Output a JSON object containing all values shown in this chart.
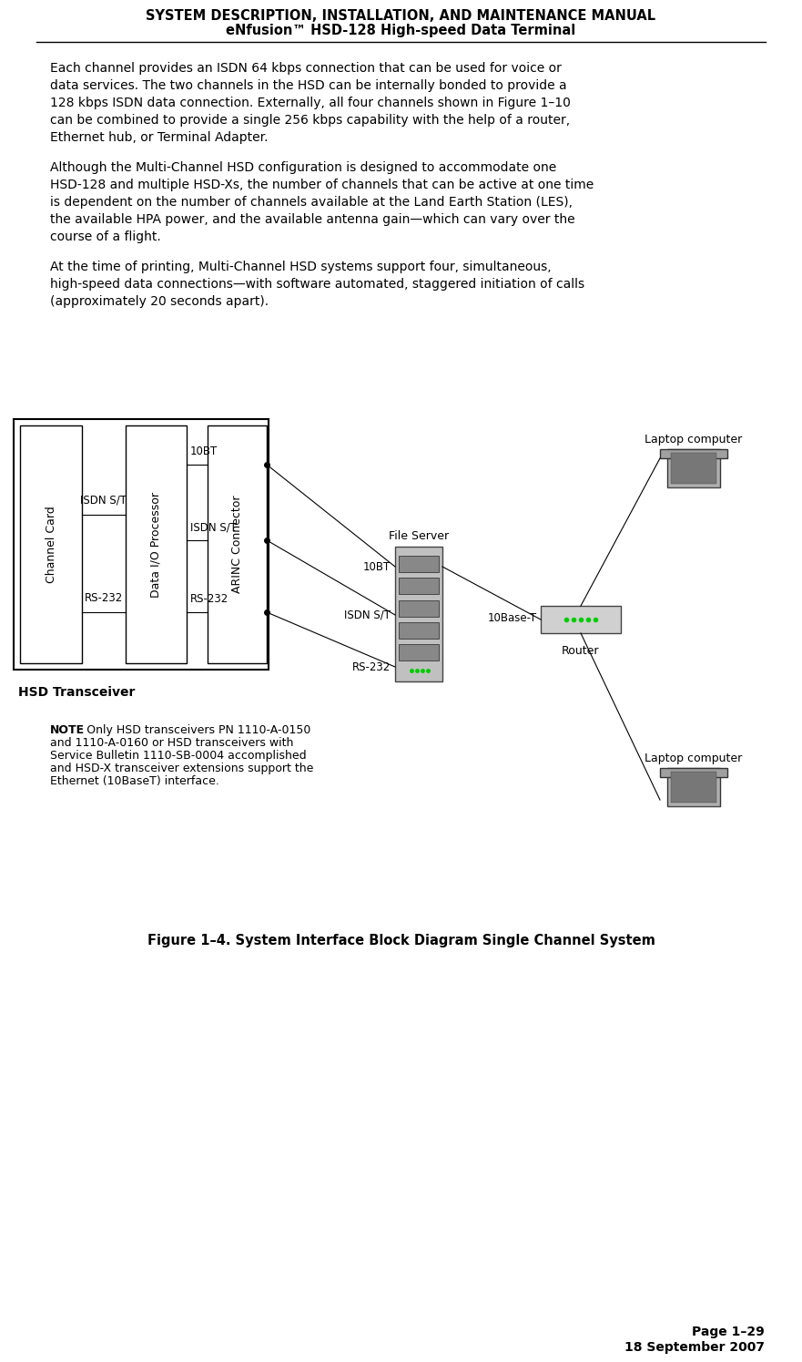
{
  "title_line1": "SYSTEM DESCRIPTION, INSTALLATION, AND MAINTENANCE MANUAL",
  "title_line2": "eNfusion™ HSD-128 High-speed Data Terminal",
  "para1": "Each channel provides an ISDN 64 kbps connection that can be used for voice or data services. The two channels in the HSD can be internally bonded to provide a 128 kbps ISDN data connection. Externally, all four channels shown in Figure 1–10 can be combined to provide a single 256 kbps capability with the help of a router, Ethernet hub, or Terminal Adapter.",
  "para2": "Although the Multi-Channel HSD configuration is designed to accommodate one HSD-128 and multiple HSD-Xs, the number of channels that can be active at one time is dependent on the number of channels available at the Land Earth Station (LES), the available HPA power, and the available antenna gain—which can vary over the course of a flight.",
  "para3": "At the time of printing, Multi-Channel HSD systems support four, simultaneous, high-speed data connections—with software automated, staggered initiation of calls (approximately 20 seconds apart).",
  "figure_caption": "Figure 1–4. System Interface Block Diagram Single Channel System",
  "hsd_label": "HSD Transceiver",
  "note_bold": "NOTE",
  "note_colon": ": Only HSD transceivers PN 1110-A-0150",
  "note_line2": "and 1110-A-0160 or HSD transceivers with",
  "note_line3": "Service Bulletin 1110-SB-0004 accomplished",
  "note_line4": "and HSD-X transceiver extensions support the",
  "note_line5": "Ethernet (10BaseT) interface.",
  "page_line1": "Page 1–29",
  "page_line2": "18 September 2007",
  "bg_color": "#ffffff",
  "text_color": "#000000",
  "para1_lines": [
    "Each channel provides an ISDN 64 kbps connection that can be used for voice or",
    "data services. The two channels in the HSD can be internally bonded to provide a",
    "128 kbps ISDN data connection. Externally, all four channels shown in Figure 1–10",
    "can be combined to provide a single 256 kbps capability with the help of a router,",
    "Ethernet hub, or Terminal Adapter."
  ],
  "para2_lines": [
    "Although the Multi-Channel HSD configuration is designed to accommodate one",
    "HSD-128 and multiple HSD-Xs, the number of channels that can be active at one time",
    "is dependent on the number of channels available at the Land Earth Station (LES),",
    "the available HPA power, and the available antenna gain—which can vary over the",
    "course of a flight."
  ],
  "para3_lines": [
    "At the time of printing, Multi-Channel HSD systems support four, simultaneous,",
    "high-speed data connections—with software automated, staggered initiation of calls",
    "(approximately 20 seconds apart)."
  ]
}
